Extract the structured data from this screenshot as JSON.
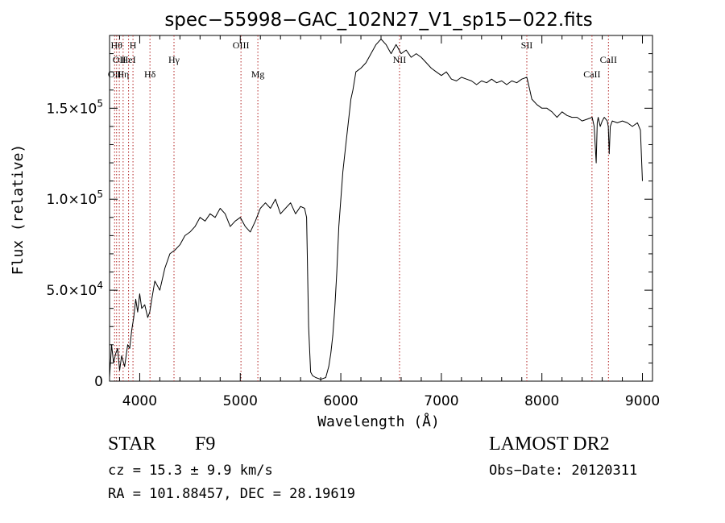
{
  "chart_data": {
    "type": "line",
    "title": "spec−55998−GAC_102N27_V1_sp15−022.fits",
    "xlabel": "Wavelength (Å)",
    "ylabel": "Flux (relative)",
    "xlim": [
      3700,
      9100
    ],
    "ylim": [
      0,
      190000
    ],
    "xticks": [
      {
        "value": 4000,
        "label": "4000"
      },
      {
        "value": 5000,
        "label": "5000"
      },
      {
        "value": 6000,
        "label": "6000"
      },
      {
        "value": 7000,
        "label": "7000"
      },
      {
        "value": 8000,
        "label": "8000"
      },
      {
        "value": 9000,
        "label": "9000"
      }
    ],
    "yticks": [
      {
        "value": 0,
        "base": "0",
        "exp": ""
      },
      {
        "value": 50000,
        "base": "5.0×10",
        "exp": "4"
      },
      {
        "value": 100000,
        "base": "1.0×10",
        "exp": "5"
      },
      {
        "value": 150000,
        "base": "1.5×10",
        "exp": "5"
      }
    ],
    "grid": false,
    "line_color": "#000000",
    "marker_color": "#b22222",
    "lines": [
      {
        "wavelength": 3750,
        "label": "OII",
        "row": 2
      },
      {
        "wavelength": 3770,
        "label": "Hθ",
        "row": 0
      },
      {
        "wavelength": 3797,
        "label": "OII",
        "row": 1
      },
      {
        "wavelength": 3835,
        "label": "Hη",
        "row": 2
      },
      {
        "wavelength": 3889,
        "label": "HeI",
        "row": 1
      },
      {
        "wavelength": 3933,
        "label": "H",
        "row": 0
      },
      {
        "wavelength": 4102,
        "label": "Hδ",
        "row": 2
      },
      {
        "wavelength": 4341,
        "label": "Hγ",
        "row": 1
      },
      {
        "wavelength": 5007,
        "label": "OIII",
        "row": 0
      },
      {
        "wavelength": 5175,
        "label": "Mg",
        "row": 2
      },
      {
        "wavelength": 6584,
        "label": "NII",
        "row": 1
      },
      {
        "wavelength": 7850,
        "label": "SII",
        "row": 0
      },
      {
        "wavelength": 8498,
        "label": "CaII",
        "row": 2
      },
      {
        "wavelength": 8662,
        "label": "CaII",
        "row": 1
      }
    ],
    "series": [
      {
        "x": [
          3700,
          3720,
          3740,
          3760,
          3780,
          3800,
          3820,
          3850,
          3880,
          3900,
          3920,
          3940,
          3960,
          3980,
          4000,
          4020,
          4050,
          4080,
          4100,
          4120,
          4150,
          4200,
          4250,
          4300,
          4350,
          4400,
          4450,
          4500,
          4550,
          4600,
          4650,
          4700,
          4750,
          4800,
          4850,
          4900,
          4950,
          5000,
          5050,
          5100,
          5150,
          5200,
          5250,
          5300,
          5350,
          5400,
          5450,
          5500,
          5550,
          5600,
          5640,
          5660,
          5680,
          5700,
          5720,
          5750,
          5800,
          5850,
          5880,
          5900,
          5920,
          5940,
          5960,
          5980,
          6000,
          6020,
          6050,
          6080,
          6100,
          6120,
          6150,
          6200,
          6250,
          6300,
          6350,
          6400,
          6450,
          6500,
          6550,
          6600,
          6650,
          6700,
          6750,
          6800,
          6850,
          6900,
          6950,
          7000,
          7050,
          7100,
          7150,
          7200,
          7250,
          7300,
          7350,
          7400,
          7450,
          7500,
          7550,
          7600,
          7650,
          7700,
          7750,
          7800,
          7850,
          7880,
          7900,
          7950,
          8000,
          8050,
          8100,
          8150,
          8200,
          8250,
          8300,
          8350,
          8400,
          8450,
          8500,
          8520,
          8540,
          8550,
          8560,
          8580,
          8600,
          8620,
          8650,
          8660,
          8670,
          8680,
          8700,
          8750,
          8800,
          8850,
          8900,
          8950,
          8980,
          9000
        ],
        "y": [
          2000,
          20000,
          10000,
          15000,
          18000,
          6000,
          14000,
          8000,
          20000,
          18000,
          28000,
          35000,
          45000,
          38000,
          48000,
          40000,
          42000,
          35000,
          38000,
          45000,
          55000,
          50000,
          62000,
          70000,
          72000,
          75000,
          80000,
          82000,
          85000,
          90000,
          88000,
          92000,
          90000,
          95000,
          92000,
          85000,
          88000,
          90000,
          85000,
          82000,
          88000,
          95000,
          98000,
          95000,
          100000,
          92000,
          95000,
          98000,
          92000,
          96000,
          95000,
          90000,
          30000,
          5000,
          3000,
          2000,
          1000,
          2000,
          8000,
          15000,
          25000,
          40000,
          60000,
          85000,
          100000,
          115000,
          130000,
          145000,
          155000,
          160000,
          170000,
          172000,
          175000,
          180000,
          185000,
          188000,
          185000,
          180000,
          185000,
          180000,
          182000,
          178000,
          180000,
          178000,
          175000,
          172000,
          170000,
          168000,
          170000,
          166000,
          165000,
          167000,
          166000,
          165000,
          163000,
          165000,
          164000,
          166000,
          164000,
          165000,
          163000,
          165000,
          164000,
          166000,
          167000,
          160000,
          155000,
          152000,
          150000,
          150000,
          148000,
          145000,
          148000,
          146000,
          145000,
          145000,
          143000,
          144000,
          145000,
          140000,
          120000,
          142000,
          145000,
          140000,
          143000,
          145000,
          143000,
          140000,
          125000,
          140000,
          143000,
          142000,
          143000,
          142000,
          140000,
          142000,
          138000,
          110000
        ]
      }
    ]
  },
  "footer": {
    "object_class": "STAR",
    "subclass": "F9",
    "survey": "LAMOST DR2",
    "redshift": "cz = 15.3 ± 9.9 km/s",
    "obs_date": "Obs−Date: 20120311",
    "coords": "RA = 101.88457, DEC =  28.19619"
  }
}
